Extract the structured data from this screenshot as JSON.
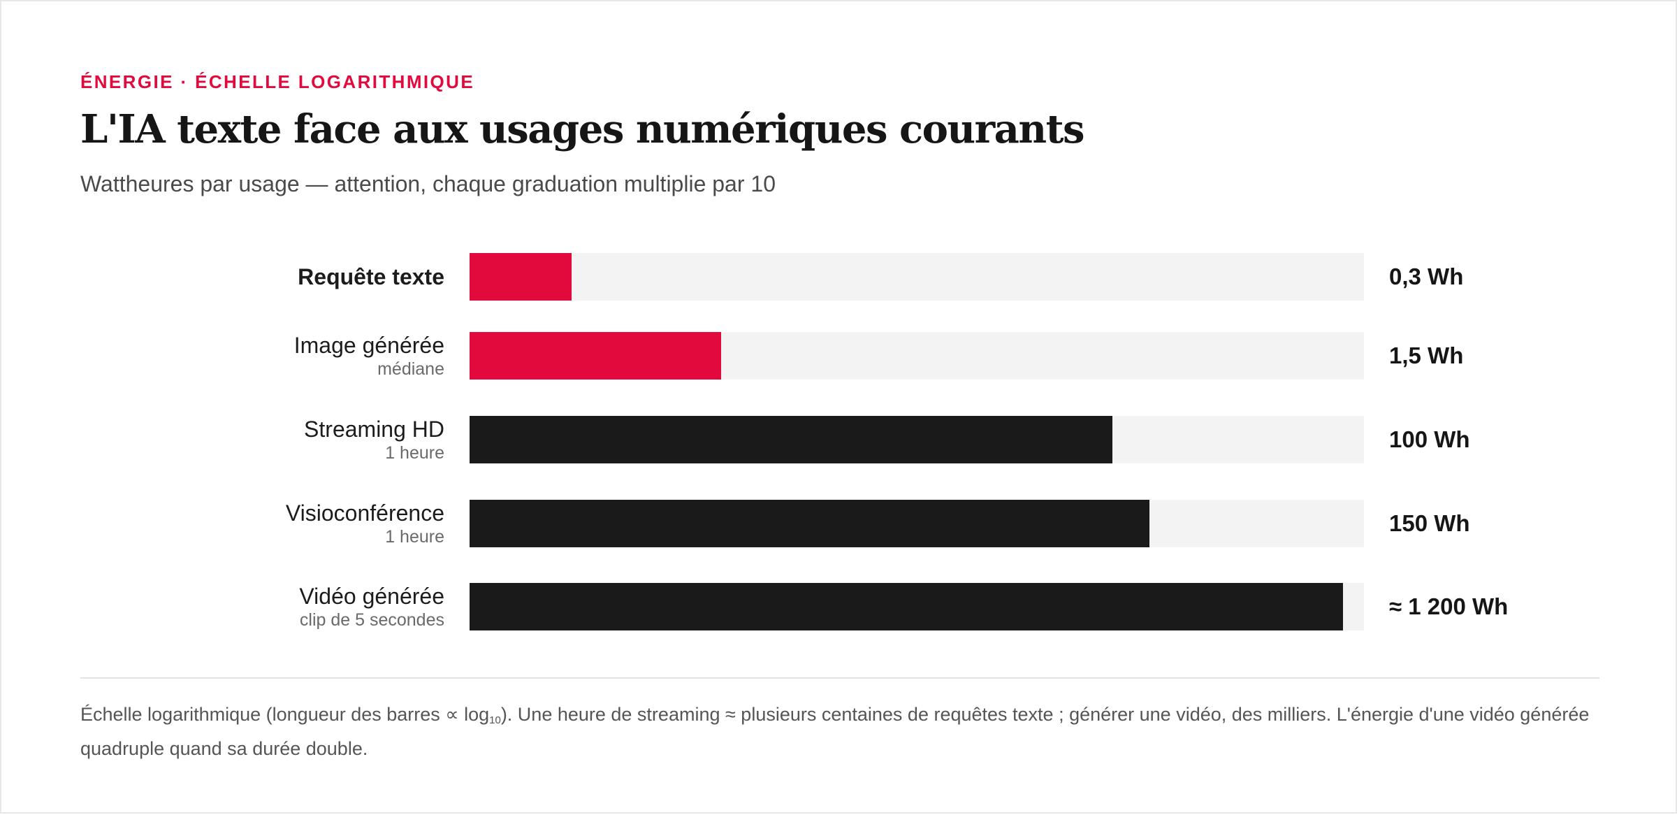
{
  "header": {
    "kicker": "ÉNERGIE · ÉCHELLE LOGARITHMIQUE",
    "title": "L'IA texte face aux usages numériques courants",
    "subtitle": "Wattheures par usage — attention, chaque graduation multiplie par 10"
  },
  "colors": {
    "accent": "#e20a3c",
    "dark_bar": "#1a1a1a",
    "track": "#f3f3f3"
  },
  "chart_data": {
    "type": "bar",
    "orientation": "horizontal",
    "scale": "log10",
    "unit": "Wh",
    "categories": [
      "Requête texte",
      "Image générée",
      "Streaming HD",
      "Visioconférence",
      "Vidéo générée"
    ],
    "sublabels": [
      "",
      "médiane",
      "1 heure",
      "1 heure",
      "clip de 5 secondes"
    ],
    "values": [
      0.3,
      1.5,
      100,
      150,
      1200
    ],
    "value_labels": [
      "0,3 Wh",
      "1,5 Wh",
      "100 Wh",
      "150 Wh",
      "≈ 1 200 Wh"
    ],
    "highlight": [
      true,
      true,
      false,
      false,
      false
    ],
    "emphasized": [
      true,
      false,
      false,
      false,
      false
    ],
    "xlim": [
      0.1,
      1500
    ]
  },
  "footer": {
    "note_part1": "Échelle logarithmique (longueur des barres ∝ log",
    "note_sub": "10",
    "note_part2": "). Une heure de streaming ≈ plusieurs centaines de requêtes texte ; générer une vidéo, des milliers. L'énergie d'une vidéo générée quadruple quand sa durée double."
  }
}
